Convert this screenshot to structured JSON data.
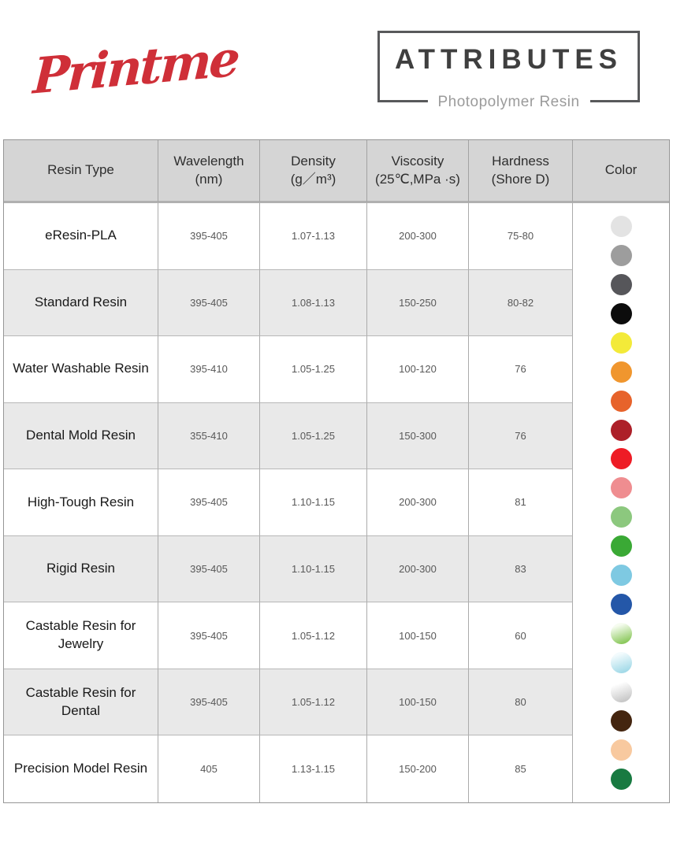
{
  "brand": {
    "logo_text": "Printme",
    "logo_color": "#cf2f38"
  },
  "title_box": {
    "title": "ATTRIBUTES",
    "subtitle": "Photopolymer Resin",
    "border_color": "#58595b"
  },
  "table": {
    "headers": [
      {
        "label": "Resin Type",
        "sub": ""
      },
      {
        "label": "Wavelength",
        "sub": "(nm)"
      },
      {
        "label": "Density",
        "sub": "(g／m³)"
      },
      {
        "label": "Viscosity",
        "sub": "(25℃,MPa ·s)"
      },
      {
        "label": "Hardness",
        "sub": "(Shore D)"
      },
      {
        "label": "Color",
        "sub": ""
      }
    ],
    "rows": [
      {
        "resin_type": "eResin-PLA",
        "wavelength": "395-405",
        "density": "1.07-1.13",
        "viscosity": "200-300",
        "hardness": "75-80"
      },
      {
        "resin_type": "Standard Resin",
        "wavelength": "395-405",
        "density": "1.08-1.13",
        "viscosity": "150-250",
        "hardness": "80-82"
      },
      {
        "resin_type": "Water Washable Resin",
        "wavelength": "395-410",
        "density": "1.05-1.25",
        "viscosity": "100-120",
        "hardness": "76"
      },
      {
        "resin_type": "Dental Mold Resin",
        "wavelength": "355-410",
        "density": "1.05-1.25",
        "viscosity": "150-300",
        "hardness": "76"
      },
      {
        "resin_type": "High-Tough Resin",
        "wavelength": "395-405",
        "density": "1.10-1.15",
        "viscosity": "200-300",
        "hardness": "81"
      },
      {
        "resin_type": "Rigid Resin",
        "wavelength": "395-405",
        "density": "1.10-1.15",
        "viscosity": "200-300",
        "hardness": "83"
      },
      {
        "resin_type": "Castable Resin for Jewelry",
        "wavelength": "395-405",
        "density": "1.05-1.12",
        "viscosity": "100-150",
        "hardness": "60"
      },
      {
        "resin_type": "Castable Resin for Dental",
        "wavelength": "395-405",
        "density": "1.05-1.12",
        "viscosity": "100-150",
        "hardness": "80"
      },
      {
        "resin_type": "Precision Model Resin",
        "wavelength": "405",
        "density": "1.13-1.15",
        "viscosity": "150-200",
        "hardness": "85"
      }
    ],
    "color_column": {
      "swatches": [
        {
          "name": "light-gray",
          "solid": "#e3e3e3"
        },
        {
          "name": "gray",
          "solid": "#9d9d9d"
        },
        {
          "name": "dark-gray",
          "solid": "#56565a"
        },
        {
          "name": "black",
          "solid": "#0c0c0c"
        },
        {
          "name": "yellow",
          "solid": "#f3ea39"
        },
        {
          "name": "orange",
          "solid": "#f0962e"
        },
        {
          "name": "orange-red",
          "solid": "#e7632b"
        },
        {
          "name": "dark-red",
          "solid": "#ad2029"
        },
        {
          "name": "red",
          "solid": "#ee1c25"
        },
        {
          "name": "salmon-pink",
          "solid": "#ef8d90"
        },
        {
          "name": "light-green",
          "solid": "#8cc87e"
        },
        {
          "name": "green",
          "solid": "#3aa935"
        },
        {
          "name": "sky-blue",
          "solid": "#7ec9e2"
        },
        {
          "name": "blue",
          "solid": "#2457a8"
        },
        {
          "name": "clear-green",
          "gradient": [
            "#f6fcf0",
            "#8cc95e"
          ]
        },
        {
          "name": "clear-cyan",
          "gradient": [
            "#f3fbfd",
            "#a3dae8"
          ]
        },
        {
          "name": "clear-white",
          "gradient": [
            "#ffffff",
            "#c8c8c8"
          ]
        },
        {
          "name": "dark-brown",
          "solid": "#44250f"
        },
        {
          "name": "peach",
          "solid": "#f8c99f"
        },
        {
          "name": "dark-green",
          "solid": "#187a41"
        }
      ]
    },
    "style": {
      "header_bg": "#d5d5d5",
      "zebra_bg": "#e9e9e9",
      "border_color": "#ababab"
    }
  }
}
